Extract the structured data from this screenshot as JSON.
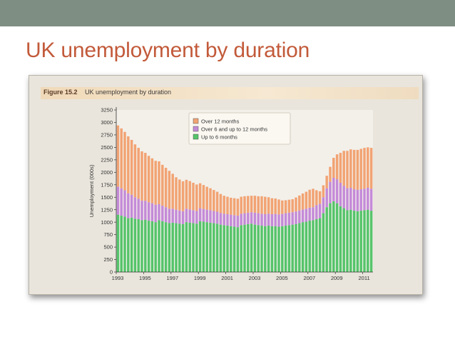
{
  "slide": {
    "title": "UK unemployment by duration"
  },
  "figure": {
    "label": "Figure 15.2",
    "title": "UK unemployment by duration"
  },
  "colors": {
    "band": "#7f8e83",
    "title": "#c25a3a",
    "over12": "#f2a373",
    "six_to_12": "#c48ad8",
    "upto6": "#55c46a"
  },
  "chart_data": {
    "type": "bar",
    "stacked": true,
    "title": "UK unemployment by duration",
    "ylabel": "Unemployment (000s)",
    "xlabel": "",
    "ylim": [
      0,
      3250
    ],
    "yticks": [
      0,
      250,
      500,
      750,
      1000,
      1250,
      1500,
      1750,
      2000,
      2250,
      2500,
      2750,
      3000,
      3250
    ],
    "x_tick_labels": [
      "1993",
      "1995",
      "1997",
      "1999",
      "2001",
      "2003",
      "2005",
      "2007",
      "2009",
      "2011"
    ],
    "x_period": "quarterly",
    "x_range": [
      "1993 Q1",
      "2011 Q3"
    ],
    "legend_position": "top-center",
    "series": [
      {
        "name": "Up to 6 months",
        "color": "#55c46a",
        "values": [
          1150,
          1130,
          1110,
          1080,
          1090,
          1070,
          1060,
          1040,
          1050,
          1030,
          1020,
          1000,
          1040,
          1020,
          1000,
          980,
          990,
          980,
          970,
          960,
          1000,
          990,
          980,
          970,
          1020,
          1010,
          1000,
          990,
          980,
          970,
          950,
          940,
          930,
          920,
          910,
          900,
          940,
          950,
          960,
          970,
          950,
          940,
          930,
          920,
          930,
          920,
          920,
          910,
          920,
          930,
          940,
          950,
          960,
          980,
          1000,
          1010,
          1030,
          1040,
          1060,
          1080,
          1180,
          1300,
          1380,
          1420,
          1380,
          1320,
          1280,
          1240,
          1250,
          1230,
          1220,
          1230,
          1240,
          1250,
          1230
        ]
      },
      {
        "name": "Over 6 and up to 12 months",
        "color": "#c48ad8",
        "values": [
          560,
          550,
          530,
          500,
          460,
          430,
          410,
          390,
          380,
          370,
          360,
          350,
          320,
          310,
          300,
          290,
          280,
          270,
          265,
          260,
          270,
          265,
          260,
          255,
          260,
          255,
          250,
          250,
          245,
          240,
          235,
          230,
          230,
          230,
          230,
          230,
          230,
          230,
          230,
          230,
          240,
          240,
          240,
          240,
          240,
          240,
          245,
          245,
          245,
          250,
          250,
          250,
          255,
          255,
          255,
          260,
          260,
          260,
          280,
          290,
          320,
          380,
          430,
          470,
          480,
          470,
          450,
          440,
          440,
          430,
          430,
          430,
          430,
          440,
          440
        ]
      },
      {
        "name": "Over 12 months",
        "color": "#f2a373",
        "values": [
          1230,
          1200,
          1170,
          1140,
          1100,
          1060,
          1020,
          990,
          960,
          930,
          900,
          880,
          860,
          820,
          790,
          760,
          700,
          650,
          620,
          600,
          580,
          570,
          550,
          530,
          500,
          480,
          460,
          440,
          420,
          400,
          380,
          360,
          350,
          340,
          340,
          340,
          340,
          340,
          335,
          330,
          340,
          340,
          350,
          350,
          330,
          320,
          310,
          300,
          270,
          260,
          260,
          260,
          280,
          300,
          320,
          340,
          360,
          370,
          300,
          250,
          240,
          250,
          300,
          400,
          500,
          600,
          700,
          750,
          770,
          790,
          800,
          810,
          820,
          810,
          820
        ]
      }
    ]
  }
}
